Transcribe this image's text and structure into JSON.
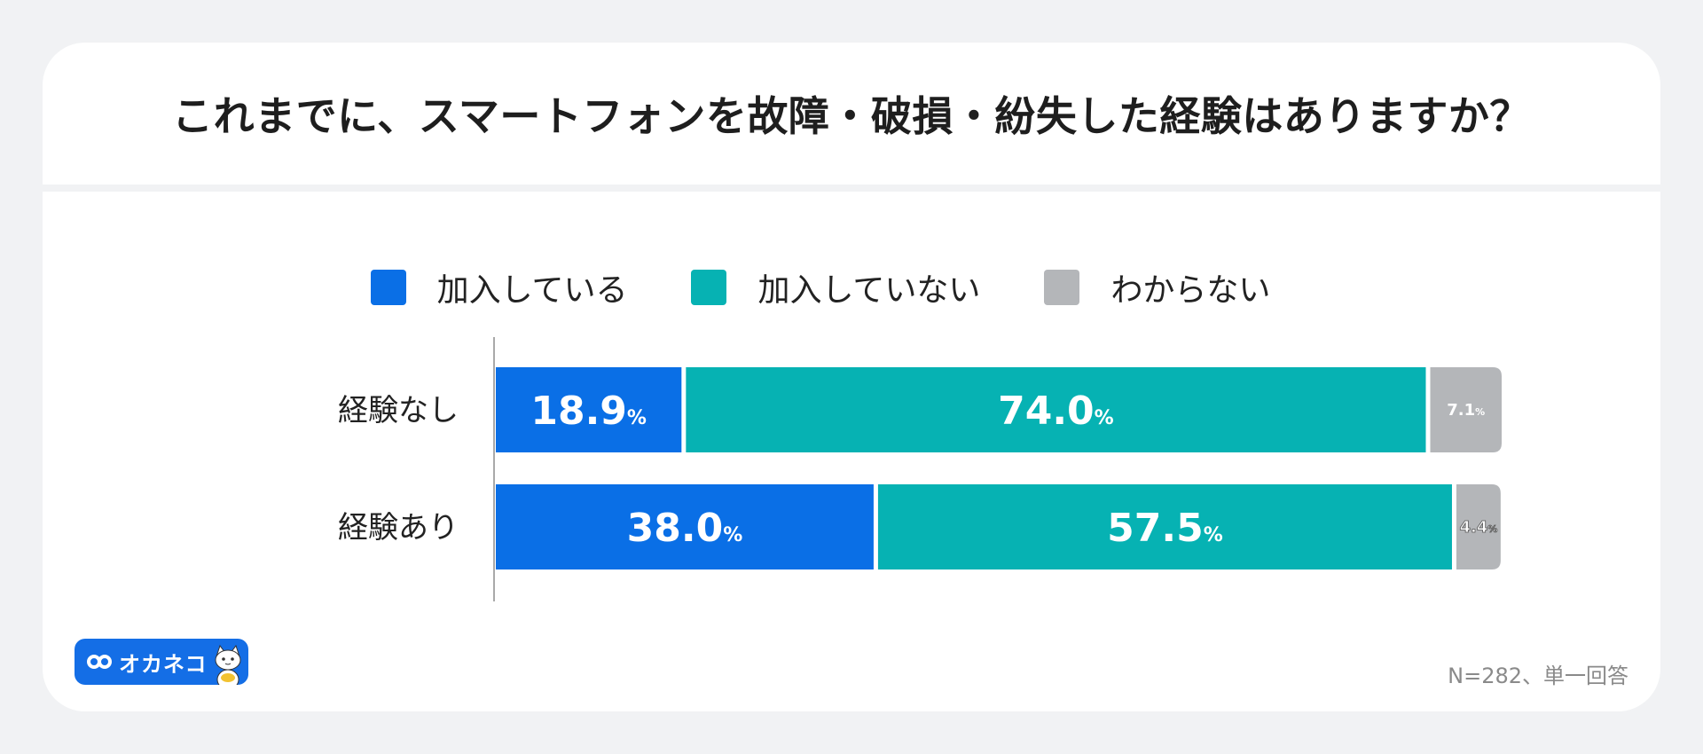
{
  "title": "これまでに、スマートフォンを故障・破損・紛失した経験はありますか？",
  "legend": [
    {
      "label": "加入している",
      "color": "#0a6fe6"
    },
    {
      "label": "加入していない",
      "color": "#06b2b3"
    },
    {
      "label": "わからない",
      "color": "#b4b6b9"
    }
  ],
  "logo": {
    "text": "オカネコ"
  },
  "footnote": "N=282、単一回答",
  "chart_data": {
    "type": "bar",
    "orientation": "horizontal",
    "stacked": true,
    "unit": "%",
    "categories": [
      "経験なし",
      "経験あり"
    ],
    "series": [
      {
        "name": "加入している",
        "values": [
          18.9,
          38.0
        ],
        "color": "#0a6fe6"
      },
      {
        "name": "加入していない",
        "values": [
          74.0,
          57.5
        ],
        "color": "#06b2b3"
      },
      {
        "name": "わからない",
        "values": [
          7.1,
          4.4
        ],
        "color": "#b4b6b9"
      }
    ],
    "labels": [
      [
        "18.9",
        "74.0",
        "7.1"
      ],
      [
        "38.0",
        "57.5",
        "4.4"
      ]
    ],
    "xlim": [
      0,
      100
    ],
    "legend_position": "top"
  }
}
